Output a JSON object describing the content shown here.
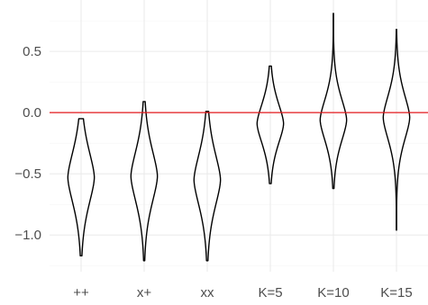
{
  "chart_data": {
    "type": "violin",
    "title": "",
    "xlabel": "",
    "ylabel": "",
    "categories": [
      "++",
      "x+",
      "xx",
      "K=5",
      "K=10",
      "K=15"
    ],
    "y_ticks": [
      -1.0,
      -0.5,
      0.0,
      0.5
    ],
    "y_tick_labels": [
      "−1.0",
      "−0.5",
      "0.0",
      "0.5"
    ],
    "ylim": [
      -1.3,
      0.92
    ],
    "grid": true,
    "reference_line": {
      "y": 0.0,
      "color": "#e41a1c"
    },
    "violins": [
      {
        "category": "++",
        "min": -1.17,
        "max": -0.05,
        "center": -0.53,
        "max_width": 0.42,
        "sd": 0.22
      },
      {
        "category": "x+",
        "min": -1.21,
        "max": 0.09,
        "center": -0.52,
        "max_width": 0.42,
        "sd": 0.22
      },
      {
        "category": "xx",
        "min": -1.21,
        "max": 0.01,
        "center": -0.55,
        "max_width": 0.42,
        "sd": 0.22
      },
      {
        "category": "K=5",
        "min": -0.58,
        "max": 0.38,
        "center": -0.09,
        "max_width": 0.42,
        "sd": 0.17
      },
      {
        "category": "K=10",
        "min": -0.62,
        "max": 0.81,
        "center": -0.06,
        "max_width": 0.42,
        "sd": 0.18
      },
      {
        "category": "K=15",
        "min": -0.96,
        "max": 0.68,
        "center": -0.04,
        "max_width": 0.42,
        "sd": 0.19
      }
    ]
  }
}
